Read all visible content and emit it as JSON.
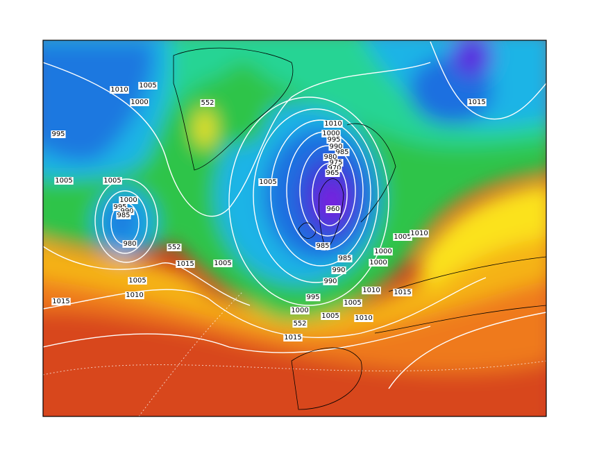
{
  "contour_labels": [
    1010,
    1005,
    1000,
    995,
    552,
    1005,
    1005,
    1000,
    995,
    990,
    985,
    980,
    552,
    1015,
    1005,
    1010,
    1015,
    1005,
    1005,
    1010,
    1000,
    995,
    990,
    985,
    980,
    975,
    970,
    965,
    960,
    985,
    985,
    990,
    990,
    995,
    1000,
    552,
    1005,
    1005,
    1010,
    1015,
    1010,
    1015,
    1000,
    1000,
    1005,
    1010,
    1015
  ]
}
